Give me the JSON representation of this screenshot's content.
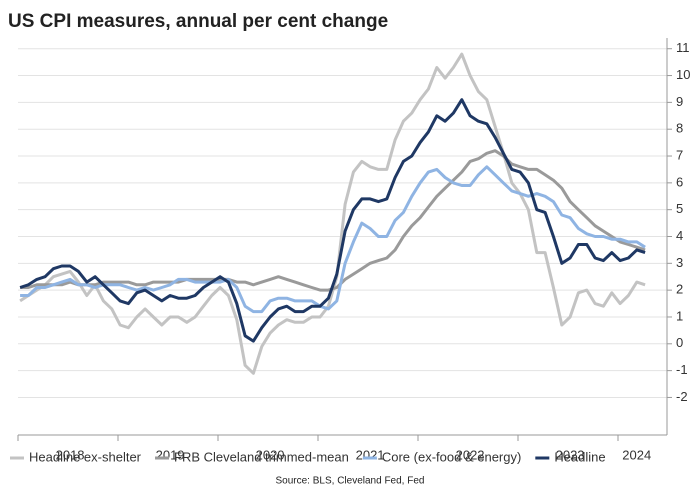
{
  "chart_data": {
    "type": "line",
    "title": "US CPI measures, annual per cent change",
    "source": "Source: BLS, Cleveland Fed, Fed",
    "categories": [
      null,
      null,
      null,
      null,
      null,
      null,
      "2018",
      null,
      null,
      null,
      null,
      null,
      null,
      null,
      null,
      null,
      null,
      null,
      "2019",
      null,
      null,
      null,
      null,
      null,
      null,
      null,
      null,
      null,
      null,
      null,
      "2020",
      null,
      null,
      null,
      null,
      null,
      null,
      null,
      null,
      null,
      null,
      null,
      "2021",
      null,
      null,
      null,
      null,
      null,
      null,
      null,
      null,
      null,
      null,
      null,
      "2022",
      null,
      null,
      null,
      null,
      null,
      null,
      null,
      null,
      null,
      null,
      null,
      "2023",
      null,
      null,
      null,
      null,
      null,
      null,
      null,
      "2024",
      null
    ],
    "series": [
      {
        "name": "Headline ex-shelter",
        "color": "#c3c3c3",
        "values": [
          1.6,
          1.8,
          2.0,
          2.2,
          2.5,
          2.6,
          2.7,
          2.3,
          1.8,
          2.2,
          1.6,
          1.3,
          0.7,
          0.6,
          1.0,
          1.3,
          1.0,
          0.7,
          1.0,
          1.0,
          0.8,
          1.0,
          1.4,
          1.8,
          2.1,
          1.8,
          0.9,
          -0.8,
          -1.1,
          -0.1,
          0.4,
          0.7,
          0.9,
          0.8,
          0.8,
          1.0,
          1.0,
          1.4,
          2.5,
          5.2,
          6.4,
          6.8,
          6.6,
          6.5,
          6.5,
          7.6,
          8.3,
          8.6,
          9.1,
          9.5,
          10.3,
          9.9,
          10.3,
          10.8,
          10.0,
          9.4,
          9.1,
          8.1,
          7.1,
          6.0,
          5.6,
          5.0,
          3.4,
          3.4,
          2.1,
          0.7,
          1.0,
          1.9,
          2.0,
          1.5,
          1.4,
          1.9,
          1.5,
          1.8,
          2.3,
          2.2
        ]
      },
      {
        "name": "FRB Cleveland trimmed-mean",
        "color": "#9a9a9a",
        "values": [
          2.1,
          2.1,
          2.2,
          2.2,
          2.2,
          2.2,
          2.3,
          2.2,
          2.2,
          2.2,
          2.3,
          2.3,
          2.3,
          2.3,
          2.2,
          2.2,
          2.3,
          2.3,
          2.3,
          2.3,
          2.4,
          2.4,
          2.4,
          2.4,
          2.4,
          2.4,
          2.3,
          2.3,
          2.2,
          2.3,
          2.4,
          2.5,
          2.4,
          2.3,
          2.2,
          2.1,
          2.0,
          2.0,
          2.1,
          2.4,
          2.6,
          2.8,
          3.0,
          3.1,
          3.2,
          3.5,
          4.0,
          4.4,
          4.7,
          5.1,
          5.5,
          5.8,
          6.1,
          6.4,
          6.8,
          6.9,
          7.1,
          7.2,
          7.0,
          6.7,
          6.6,
          6.5,
          6.5,
          6.3,
          6.1,
          5.8,
          5.3,
          5.0,
          4.7,
          4.4,
          4.2,
          4.0,
          3.8,
          3.7,
          3.6,
          3.5
        ]
      },
      {
        "name": "Core (ex-food & energy)",
        "color": "#8fb4e3",
        "values": [
          1.8,
          1.8,
          2.1,
          2.1,
          2.2,
          2.3,
          2.4,
          2.2,
          2.2,
          2.1,
          2.2,
          2.2,
          2.2,
          2.1,
          2.0,
          2.1,
          2.0,
          2.1,
          2.2,
          2.4,
          2.4,
          2.3,
          2.3,
          2.3,
          2.3,
          2.4,
          2.1,
          1.4,
          1.2,
          1.2,
          1.6,
          1.7,
          1.7,
          1.6,
          1.6,
          1.6,
          1.4,
          1.3,
          1.6,
          3.0,
          3.8,
          4.5,
          4.3,
          4.0,
          4.0,
          4.6,
          4.9,
          5.5,
          6.0,
          6.4,
          6.5,
          6.2,
          6.0,
          5.9,
          5.9,
          6.3,
          6.6,
          6.3,
          6.0,
          5.7,
          5.6,
          5.5,
          5.6,
          5.5,
          5.3,
          4.8,
          4.7,
          4.3,
          4.1,
          4.0,
          4.0,
          3.9,
          3.9,
          3.8,
          3.8,
          3.6
        ]
      },
      {
        "name": "Headline",
        "color": "#1f3864",
        "values": [
          2.1,
          2.2,
          2.4,
          2.5,
          2.8,
          2.9,
          2.9,
          2.7,
          2.3,
          2.5,
          2.2,
          1.9,
          1.6,
          1.5,
          1.9,
          2.0,
          1.8,
          1.6,
          1.8,
          1.7,
          1.7,
          1.8,
          2.1,
          2.3,
          2.5,
          2.3,
          1.5,
          0.3,
          0.1,
          0.6,
          1.0,
          1.3,
          1.4,
          1.2,
          1.2,
          1.4,
          1.4,
          1.7,
          2.6,
          4.2,
          5.0,
          5.4,
          5.4,
          5.3,
          5.4,
          6.2,
          6.8,
          7.0,
          7.5,
          7.9,
          8.5,
          8.3,
          8.6,
          9.1,
          8.5,
          8.3,
          8.2,
          7.7,
          7.1,
          6.5,
          6.4,
          6.0,
          5.0,
          4.9,
          4.0,
          3.0,
          3.2,
          3.7,
          3.7,
          3.2,
          3.1,
          3.4,
          3.1,
          3.2,
          3.5,
          3.4
        ]
      }
    ],
    "ylim": [
      -3.4,
      11.4
    ],
    "yticks": [
      -2,
      -1,
      0,
      1,
      2,
      3,
      4,
      5,
      6,
      7,
      8,
      9,
      10,
      11
    ],
    "grid": true,
    "legend": "bottom"
  }
}
